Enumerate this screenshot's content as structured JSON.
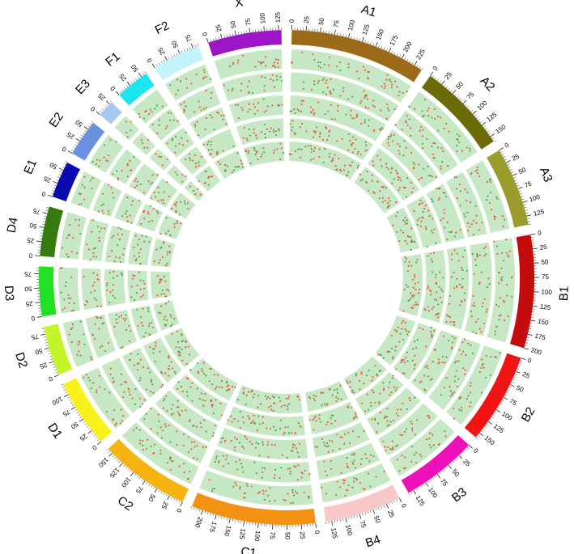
{
  "chart_data": {
    "type": "circos",
    "direction": "clockwise",
    "start_at": "top",
    "rings": 5,
    "ring_fill": "#c6e8c4",
    "point_colors": [
      "#e8543a",
      "#4a9e4a"
    ],
    "chromosomes": [
      {
        "name": "A1",
        "length": 240,
        "color": "#9c6b1a",
        "ticks": [
          0,
          25,
          50,
          75,
          100,
          125,
          150,
          175,
          200,
          225
        ]
      },
      {
        "name": "A2",
        "length": 160,
        "color": "#6b6b0a",
        "ticks": [
          0,
          25,
          50,
          75,
          100,
          125,
          150
        ]
      },
      {
        "name": "A3",
        "length": 140,
        "color": "#9b9b2e",
        "ticks": [
          0,
          25,
          50,
          75,
          100,
          125
        ]
      },
      {
        "name": "B1",
        "length": 200,
        "color": "#c40c0c",
        "ticks": [
          0,
          25,
          50,
          75,
          100,
          125,
          150,
          175,
          200
        ]
      },
      {
        "name": "B2",
        "length": 160,
        "color": "#f01414",
        "ticks": [
          0,
          25,
          50,
          75,
          100,
          125,
          150
        ]
      },
      {
        "name": "B3",
        "length": 135,
        "color": "#ee10b8",
        "ticks": [
          0,
          25,
          50,
          75,
          100,
          125
        ]
      },
      {
        "name": "B4",
        "length": 135,
        "color": "#f8c8c8",
        "ticks": [
          0,
          25,
          50,
          75,
          100,
          125
        ]
      },
      {
        "name": "C1",
        "length": 220,
        "color": "#f39112",
        "ticks": [
          0,
          25,
          50,
          75,
          100,
          125,
          150,
          175,
          200
        ]
      },
      {
        "name": "C2",
        "length": 160,
        "color": "#f5b411",
        "ticks": [
          0,
          25,
          50,
          75,
          100,
          125,
          150
        ]
      },
      {
        "name": "D1",
        "length": 120,
        "color": "#f9f21a",
        "ticks": [
          0,
          25,
          50,
          75,
          100
        ]
      },
      {
        "name": "D2",
        "length": 88,
        "color": "#c4f42a",
        "ticks": [
          0,
          25,
          50,
          75
        ]
      },
      {
        "name": "D3",
        "length": 88,
        "color": "#22e024",
        "ticks": [
          0,
          25,
          50,
          75
        ]
      },
      {
        "name": "D4",
        "length": 88,
        "color": "#357a0e",
        "ticks": [
          0,
          25,
          50,
          75
        ]
      },
      {
        "name": "E1",
        "length": 65,
        "color": "#0a0ab0",
        "ticks": [
          0,
          25,
          50
        ]
      },
      {
        "name": "E2",
        "length": 65,
        "color": "#6a90e0",
        "ticks": [
          0,
          25,
          50
        ]
      },
      {
        "name": "E3",
        "length": 30,
        "color": "#a8c8f0",
        "ticks": [
          0,
          25
        ]
      },
      {
        "name": "F1",
        "length": 60,
        "color": "#1ee4f0",
        "ticks": [
          0,
          25,
          50
        ]
      },
      {
        "name": "F2",
        "length": 85,
        "color": "#c4f4fb",
        "ticks": [
          0,
          25,
          50,
          75
        ]
      },
      {
        "name": "X",
        "length": 130,
        "color": "#9c16c8",
        "ticks": [
          0,
          25,
          50,
          75,
          100,
          125
        ]
      }
    ]
  }
}
